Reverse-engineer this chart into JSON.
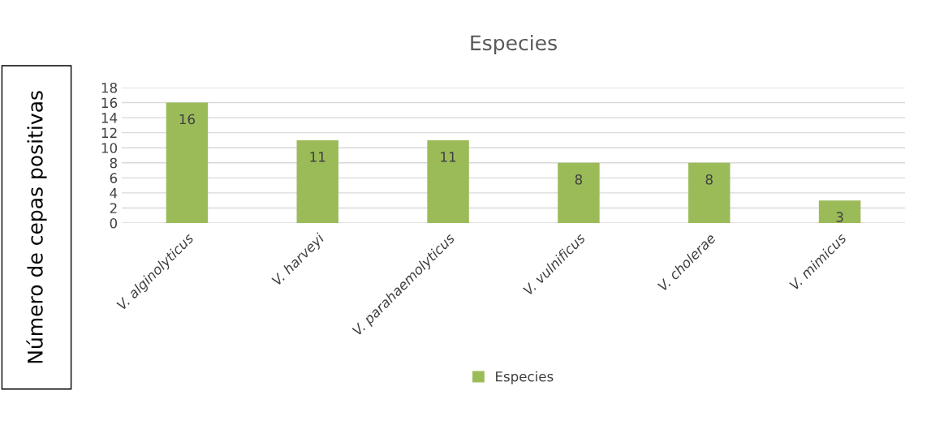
{
  "chart_data": {
    "type": "bar",
    "title": "Especies",
    "ylabel": "Número de cepas positivas",
    "categories": [
      "V. alginolyticus",
      "V. harveyi",
      "V. parahaemolyticus",
      "V. vulnificus",
      "V. cholerae",
      "V. mimicus"
    ],
    "series": [
      {
        "name": "Especies",
        "color": "#9bbb59",
        "values": [
          16,
          11,
          11,
          8,
          8,
          3
        ]
      }
    ],
    "ylim": [
      0,
      18
    ],
    "yticks": [
      0,
      2,
      4,
      6,
      8,
      10,
      12,
      14,
      16,
      18
    ],
    "grid": "y",
    "legend": "bottom",
    "data_labels": true
  }
}
